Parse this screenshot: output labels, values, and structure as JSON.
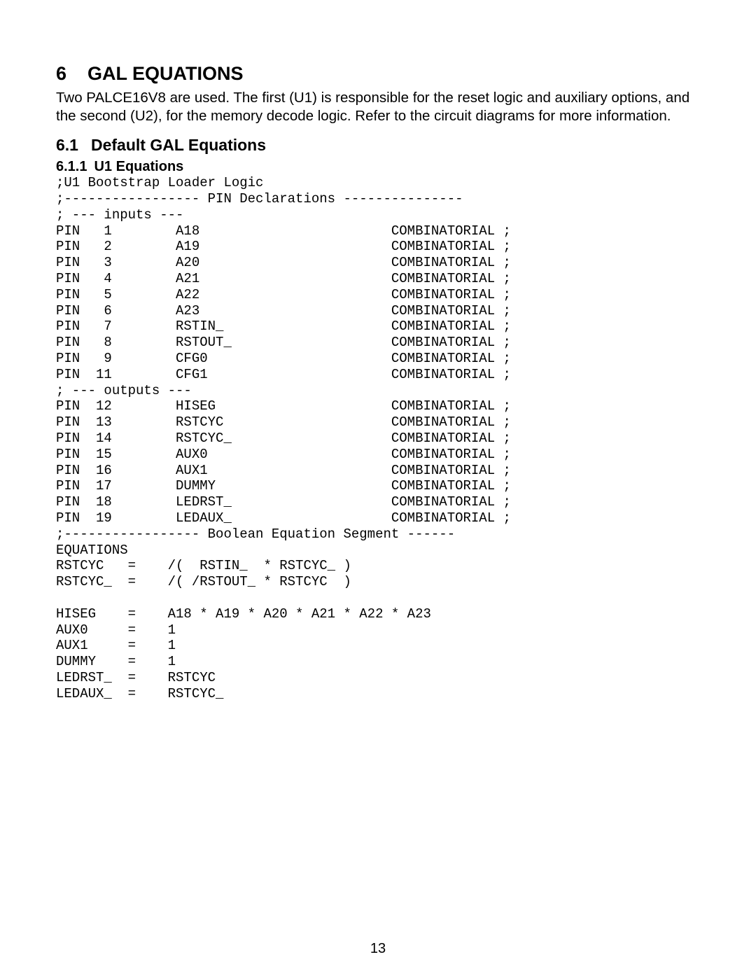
{
  "section": {
    "number": "6",
    "title": "GAL EQUATIONS",
    "intro": "Two PALCE16V8 are used.  The first (U1) is responsible for the reset logic and auxiliary options, and the second (U2), for the memory decode logic.  Refer to the circuit diagrams for more information."
  },
  "subsection": {
    "number": "6.1",
    "title": "Default GAL Equations"
  },
  "subsubsection": {
    "number": "6.1.1",
    "title": "U1 Equations"
  },
  "code": {
    "title_line": ";U1 Bootstrap Loader Logic",
    "pin_decl_header": ";----------------- PIN Declarations ---------------",
    "inputs_comment": "; --- inputs ---",
    "outputs_comment": "; --- outputs ---",
    "equation_header": ";----------------- Boolean Equation Segment ------",
    "equations_label": "EQUATIONS",
    "input_pins": [
      {
        "pin": "1",
        "name": "A18",
        "type": "COMBINATORIAL"
      },
      {
        "pin": "2",
        "name": "A19",
        "type": "COMBINATORIAL"
      },
      {
        "pin": "3",
        "name": "A20",
        "type": "COMBINATORIAL"
      },
      {
        "pin": "4",
        "name": "A21",
        "type": "COMBINATORIAL"
      },
      {
        "pin": "5",
        "name": "A22",
        "type": "COMBINATORIAL"
      },
      {
        "pin": "6",
        "name": "A23",
        "type": "COMBINATORIAL"
      },
      {
        "pin": "7",
        "name": "RSTIN_",
        "type": "COMBINATORIAL"
      },
      {
        "pin": "8",
        "name": "RSTOUT_",
        "type": "COMBINATORIAL"
      },
      {
        "pin": "9",
        "name": "CFG0",
        "type": "COMBINATORIAL"
      },
      {
        "pin": "11",
        "name": "CFG1",
        "type": "COMBINATORIAL"
      }
    ],
    "output_pins": [
      {
        "pin": "12",
        "name": "HISEG",
        "type": "COMBINATORIAL"
      },
      {
        "pin": "13",
        "name": "RSTCYC",
        "type": "COMBINATORIAL"
      },
      {
        "pin": "14",
        "name": "RSTCYC_",
        "type": "COMBINATORIAL"
      },
      {
        "pin": "15",
        "name": "AUX0",
        "type": "COMBINATORIAL"
      },
      {
        "pin": "16",
        "name": "AUX1",
        "type": "COMBINATORIAL"
      },
      {
        "pin": "17",
        "name": "DUMMY",
        "type": "COMBINATORIAL"
      },
      {
        "pin": "18",
        "name": "LEDRST_",
        "type": "COMBINATORIAL"
      },
      {
        "pin": "19",
        "name": "LEDAUX_",
        "type": "COMBINATORIAL"
      }
    ],
    "equations": [
      {
        "lhs": "RSTCYC",
        "rhs": "/(  RSTIN_  * RSTCYC_ )"
      },
      {
        "lhs": "RSTCYC_",
        "rhs": "/( /RSTOUT_ * RSTCYC  )"
      },
      {
        "lhs": "",
        "rhs": ""
      },
      {
        "lhs": "HISEG",
        "rhs": "A18 * A19 * A20 * A21 * A22 * A23"
      },
      {
        "lhs": "AUX0",
        "rhs": "1"
      },
      {
        "lhs": "AUX1",
        "rhs": "1"
      },
      {
        "lhs": "DUMMY",
        "rhs": "1"
      },
      {
        "lhs": "LEDRST_",
        "rhs": "RSTCYC"
      },
      {
        "lhs": "LEDAUX_",
        "rhs": "RSTCYC_"
      }
    ],
    "layout": {
      "pin_col_width": 4,
      "num_col_width": 3,
      "name_col_start": 15,
      "type_col_start": 42,
      "eq_lhs_width": 9,
      "eq_op_width": 3,
      "eq_rhs_indent": 2
    }
  },
  "page_number": "13",
  "style": {
    "background": "#ffffff",
    "text_color": "#000000",
    "heading_font": "Arial",
    "code_font": "Courier New",
    "heading_size_pt": 20,
    "body_size_pt": 15,
    "code_size_pt": 14
  }
}
